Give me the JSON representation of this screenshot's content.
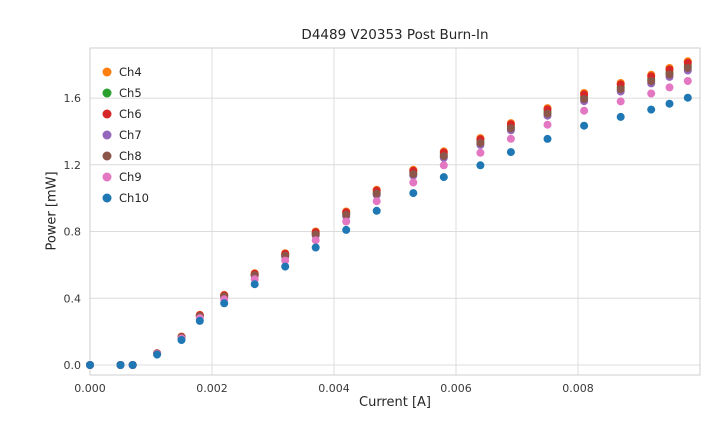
{
  "chart_data": {
    "type": "scatter",
    "title": "D4489 V20353 Post Burn-In",
    "xlabel": "Current [A]",
    "ylabel": "Power [mW]",
    "xlim": [
      0.0,
      0.01
    ],
    "ylim": [
      -0.06,
      1.9
    ],
    "grid": true,
    "grid_color": "#dcdcdc",
    "border_color": "#cfcfcf",
    "legend_position": "upper-left",
    "marker_radius": 4,
    "xticks": {
      "values": [
        0.0,
        0.002,
        0.004,
        0.006,
        0.008
      ],
      "labels": [
        "0.000",
        "0.002",
        "0.004",
        "0.006",
        "0.008"
      ]
    },
    "yticks": {
      "values": [
        0.0,
        0.4,
        0.8,
        1.2,
        1.6
      ],
      "labels": [
        "0.0",
        "0.4",
        "0.8",
        "1.2",
        "1.6"
      ]
    },
    "x": [
      0.0,
      0.0005,
      0.0007,
      0.0011,
      0.0015,
      0.0018,
      0.0022,
      0.0027,
      0.0032,
      0.0037,
      0.0042,
      0.0047,
      0.0053,
      0.0058,
      0.0064,
      0.0069,
      0.0075,
      0.0081,
      0.0087,
      0.0092,
      0.0095,
      0.0098
    ],
    "series": [
      {
        "name": "Ch4",
        "color": "#ff7f0e",
        "values": [
          0.0,
          0.0,
          0.0,
          0.07,
          0.17,
          0.3,
          0.42,
          0.55,
          0.67,
          0.8,
          0.92,
          1.05,
          1.17,
          1.28,
          1.36,
          1.45,
          1.54,
          1.63,
          1.69,
          1.74,
          1.78,
          1.82
        ]
      },
      {
        "name": "Ch5",
        "color": "#2ca02c",
        "values": [
          0.0,
          0.0,
          0.0,
          0.069,
          0.167,
          0.296,
          0.414,
          0.542,
          0.66,
          0.788,
          0.906,
          1.034,
          1.152,
          1.261,
          1.34,
          1.428,
          1.517,
          1.606,
          1.665,
          1.714,
          1.753,
          1.793
        ]
      },
      {
        "name": "Ch6",
        "color": "#d62728",
        "values": [
          0.0,
          0.0,
          0.0,
          0.07,
          0.169,
          0.299,
          0.418,
          0.547,
          0.667,
          0.796,
          0.915,
          1.045,
          1.164,
          1.274,
          1.353,
          1.443,
          1.532,
          1.622,
          1.682,
          1.731,
          1.771,
          1.811
        ]
      },
      {
        "name": "Ch7",
        "color": "#9467bd",
        "values": [
          0.0,
          0.0,
          0.0,
          0.068,
          0.165,
          0.291,
          0.407,
          0.534,
          0.65,
          0.776,
          0.892,
          1.019,
          1.135,
          1.242,
          1.319,
          1.407,
          1.494,
          1.581,
          1.639,
          1.688,
          1.727,
          1.765
        ]
      },
      {
        "name": "Ch8",
        "color": "#8c564b",
        "values": [
          0.0,
          0.0,
          0.0,
          0.068,
          0.166,
          0.293,
          0.411,
          0.538,
          0.655,
          0.782,
          0.9,
          1.027,
          1.144,
          1.252,
          1.33,
          1.418,
          1.506,
          1.594,
          1.653,
          1.702,
          1.741,
          1.78
        ]
      },
      {
        "name": "Ch9",
        "color": "#e377c2",
        "values": [
          0.0,
          0.0,
          0.0,
          0.065,
          0.159,
          0.281,
          0.393,
          0.514,
          0.626,
          0.748,
          0.86,
          0.982,
          1.094,
          1.197,
          1.272,
          1.356,
          1.44,
          1.524,
          1.58,
          1.627,
          1.664,
          1.702
        ]
      },
      {
        "name": "Ch10",
        "color": "#1f77b4",
        "values": [
          0.0,
          0.0,
          0.0,
          0.062,
          0.15,
          0.264,
          0.37,
          0.484,
          0.59,
          0.704,
          0.81,
          0.924,
          1.03,
          1.126,
          1.197,
          1.276,
          1.355,
          1.434,
          1.487,
          1.531,
          1.566,
          1.602
        ]
      }
    ]
  }
}
